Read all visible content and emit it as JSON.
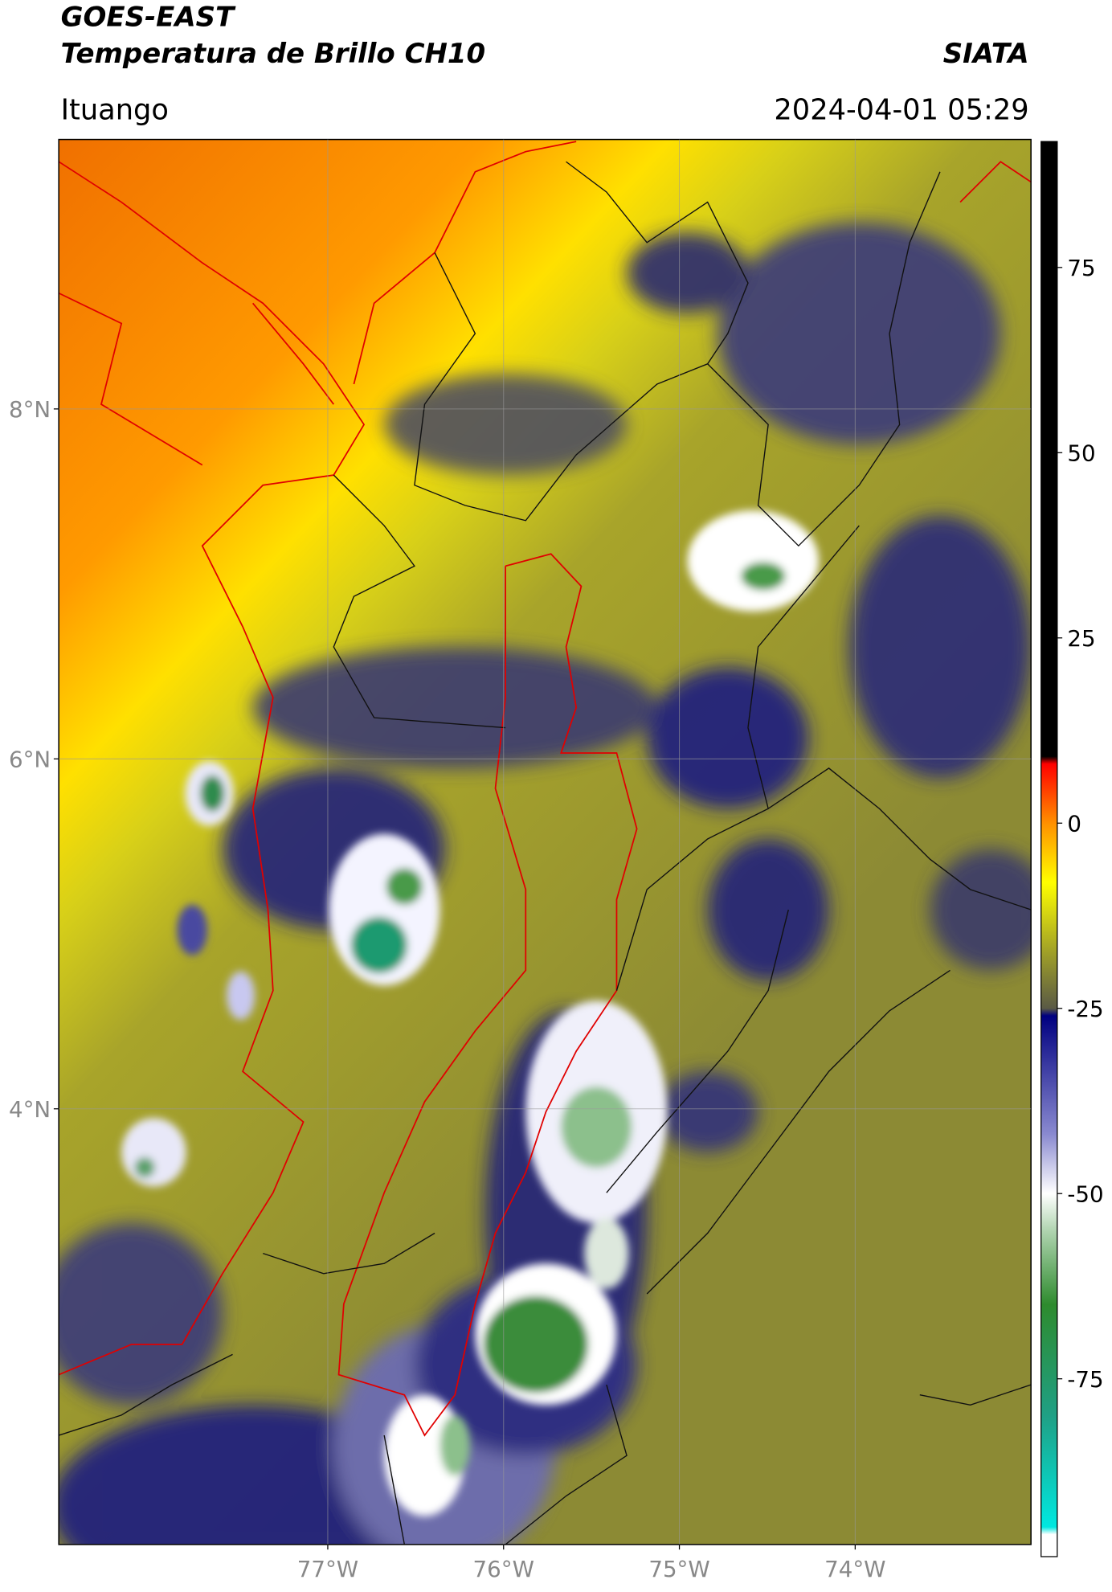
{
  "header": {
    "title": "GOES-EAST",
    "subtitle": "Temperatura de Brillo CH10",
    "org": "SIATA",
    "location": "Ituango",
    "datetime": "2024-04-01 05:29"
  },
  "map": {
    "latlim": [
      1.51,
      9.54
    ],
    "lonlim": [
      -78.53,
      -73.0
    ],
    "latticks": [
      {
        "value": 8,
        "label": "8°N"
      },
      {
        "value": 6,
        "label": "6°N"
      },
      {
        "value": 4,
        "label": "4°N"
      }
    ],
    "lonticks": [
      {
        "value": -77,
        "label": "77°W"
      },
      {
        "value": -76,
        "label": "76°W"
      },
      {
        "value": -75,
        "label": "75°W"
      },
      {
        "value": -74,
        "label": "74°W"
      }
    ],
    "grid": true
  },
  "colorbar": {
    "lim": [
      -99,
      92
    ],
    "ticks": [
      75,
      50,
      25,
      0,
      -25,
      -50,
      -75
    ],
    "stops": [
      {
        "value": -99,
        "color": "#ffffff"
      },
      {
        "value": -96,
        "color": "#ffffff"
      },
      {
        "value": -95,
        "color": "#00e8e0"
      },
      {
        "value": -80,
        "color": "#1fa085"
      },
      {
        "value": -65,
        "color": "#2e8b2e"
      },
      {
        "value": -55,
        "color": "#b0d4b0"
      },
      {
        "value": -50,
        "color": "#ffffff"
      },
      {
        "value": -42,
        "color": "#8a8ad0"
      },
      {
        "value": -26,
        "color": "#000080"
      },
      {
        "value": -25,
        "color": "#5a5a45"
      },
      {
        "value": -18,
        "color": "#9a9a2a"
      },
      {
        "value": -8,
        "color": "#ffff00"
      },
      {
        "value": 0,
        "color": "#ff9000"
      },
      {
        "value": 8,
        "color": "#ff0000"
      },
      {
        "value": 9,
        "color": "#000000"
      },
      {
        "value": 92,
        "color": "#000000"
      }
    ]
  }
}
